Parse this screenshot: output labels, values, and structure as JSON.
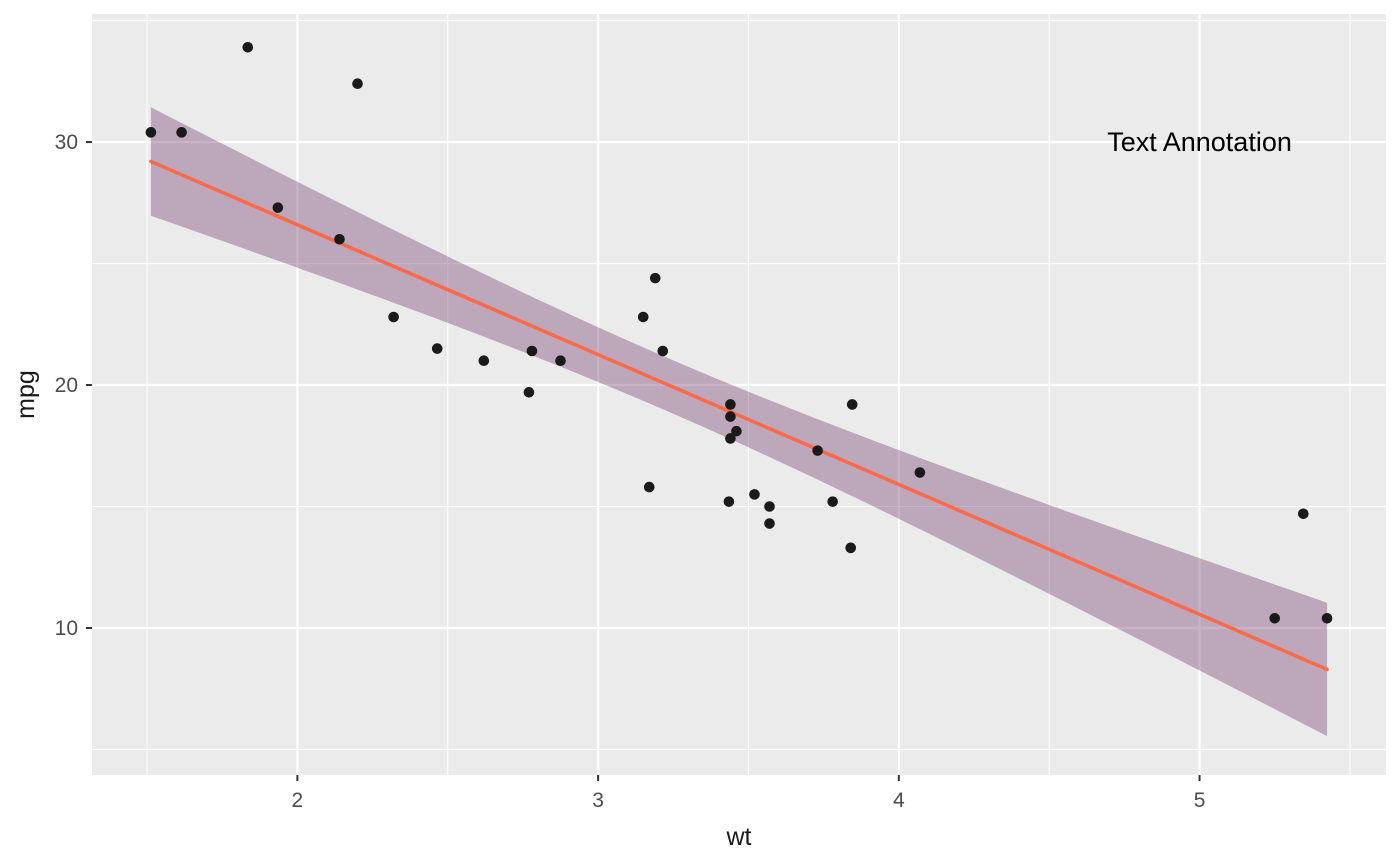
{
  "chart_data": {
    "type": "scatter",
    "title": "",
    "xlabel": "wt",
    "ylabel": "mpg",
    "x": [
      2.62,
      2.875,
      2.32,
      3.215,
      3.44,
      3.46,
      3.57,
      3.19,
      3.15,
      3.44,
      3.44,
      4.07,
      3.73,
      3.78,
      5.25,
      5.424,
      5.345,
      2.2,
      1.615,
      1.835,
      2.465,
      3.52,
      3.435,
      3.84,
      3.845,
      1.935,
      2.14,
      1.513,
      3.17,
      2.77,
      3.57,
      2.78
    ],
    "y": [
      21,
      21,
      22.8,
      21.4,
      18.7,
      18.1,
      14.3,
      24.4,
      22.8,
      19.2,
      17.8,
      16.4,
      17.3,
      15.2,
      10.4,
      10.4,
      14.7,
      32.4,
      30.4,
      33.9,
      21.5,
      15.5,
      15.2,
      13.3,
      19.2,
      27.3,
      26,
      30.4,
      15.8,
      19.7,
      15,
      21.4
    ],
    "xlim": [
      1.317,
      5.62
    ],
    "ylim": [
      3.95,
      35.27
    ],
    "x_major_ticks": [
      2,
      3,
      4,
      5
    ],
    "x_minor_ticks": [
      1.5,
      2.5,
      3.5,
      4.5,
      5.5
    ],
    "y_major_ticks": [
      10,
      20,
      30
    ],
    "y_minor_ticks": [
      5,
      15,
      25,
      35
    ],
    "grid": true,
    "legend_position": "none",
    "smooth": {
      "method": "lm",
      "ci_level": 0.95
    },
    "annotation": {
      "text": "Text Annotation",
      "x": 5.0,
      "y": 30
    },
    "colors": {
      "point": "#1a1a1a",
      "line": "#fb6a4a",
      "band": "#7c4c77",
      "band_opacity": 0.42,
      "panel_bg": "#ebebeb",
      "grid": "#ffffff",
      "tick_mark": "#333333",
      "tick_text": "#4d4d4d",
      "axis_title": "#1a1a1a",
      "annotation_text": "#000000",
      "figure_bg": "#ffffff"
    }
  }
}
